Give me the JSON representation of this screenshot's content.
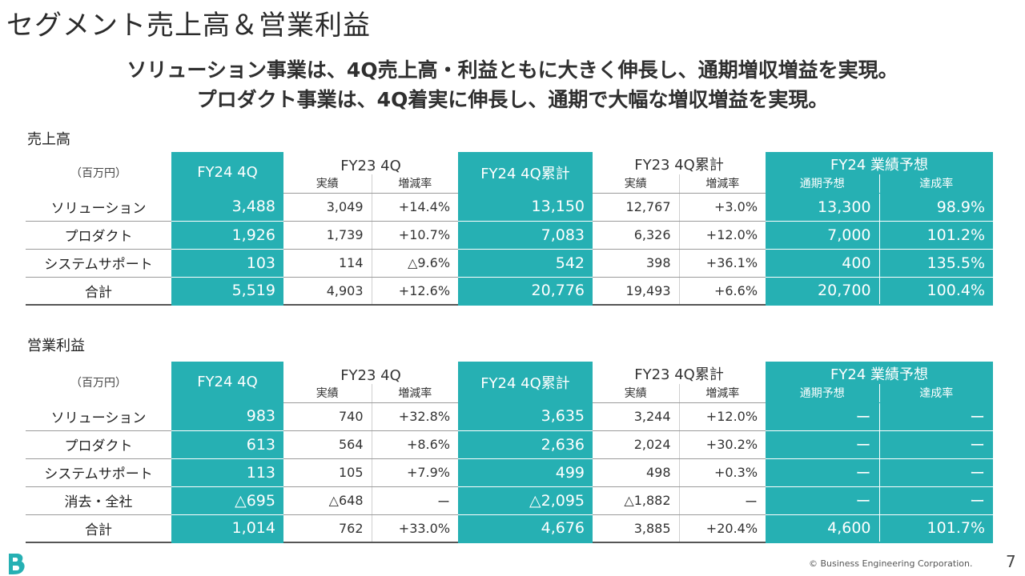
{
  "title": "セグメント売上高＆営業利益",
  "headline": {
    "line1": "ソリューション事業は、4Q売上高・利益ともに大きく伸長し、通期増収増益を実現。",
    "line2": "プロダクト事業は、4Q着実に伸長し、通期で大幅な増収増益を実現。"
  },
  "columns": {
    "unit": "（百万円）",
    "fy24_4q": "FY24 4Q",
    "fy23_4q": "FY23 4Q",
    "fy24_4q_cum": "FY24 4Q累計",
    "fy23_4q_cum": "FY23 4Q累計",
    "forecast": "FY24 業績予想",
    "actual": "実績",
    "change": "増減率",
    "full_year": "通期予想",
    "achievement": "達成率"
  },
  "sales": {
    "label": "売上高",
    "rows": [
      {
        "name": "ソリューション",
        "fy24_4q": "3,488",
        "fy23_4q": "3,049",
        "chg": "+14.4%",
        "fy24_cum": "13,150",
        "fy23_cum": "12,767",
        "chg_cum": "+3.0%",
        "forecast": "13,300",
        "achievement": "98.9%"
      },
      {
        "name": "プロダクト",
        "fy24_4q": "1,926",
        "fy23_4q": "1,739",
        "chg": "+10.7%",
        "fy24_cum": "7,083",
        "fy23_cum": "6,326",
        "chg_cum": "+12.0%",
        "forecast": "7,000",
        "achievement": "101.2%"
      },
      {
        "name": "システムサポート",
        "fy24_4q": "103",
        "fy23_4q": "114",
        "chg": "△9.6%",
        "fy24_cum": "542",
        "fy23_cum": "398",
        "chg_cum": "+36.1%",
        "forecast": "400",
        "achievement": "135.5%"
      },
      {
        "name": "合計",
        "fy24_4q": "5,519",
        "fy23_4q": "4,903",
        "chg": "+12.6%",
        "fy24_cum": "20,776",
        "fy23_cum": "19,493",
        "chg_cum": "+6.6%",
        "forecast": "20,700",
        "achievement": "100.4%"
      }
    ]
  },
  "profit": {
    "label": "営業利益",
    "rows": [
      {
        "name": "ソリューション",
        "fy24_4q": "983",
        "fy23_4q": "740",
        "chg": "+32.8%",
        "fy24_cum": "3,635",
        "fy23_cum": "3,244",
        "chg_cum": "+12.0%",
        "forecast": "ー",
        "achievement": "ー"
      },
      {
        "name": "プロダクト",
        "fy24_4q": "613",
        "fy23_4q": "564",
        "chg": "+8.6%",
        "fy24_cum": "2,636",
        "fy23_cum": "2,024",
        "chg_cum": "+30.2%",
        "forecast": "ー",
        "achievement": "ー"
      },
      {
        "name": "システムサポート",
        "fy24_4q": "113",
        "fy23_4q": "105",
        "chg": "+7.9%",
        "fy24_cum": "499",
        "fy23_cum": "498",
        "chg_cum": "+0.3%",
        "forecast": "ー",
        "achievement": "ー"
      },
      {
        "name": "消去・全社",
        "fy24_4q": "△695",
        "fy23_4q": "△648",
        "chg": "ー",
        "fy24_cum": "△2,095",
        "fy23_cum": "△1,882",
        "chg_cum": "ー",
        "forecast": "ー",
        "achievement": "ー"
      },
      {
        "name": "合計",
        "fy24_4q": "1,014",
        "fy23_4q": "762",
        "chg": "+33.0%",
        "fy24_cum": "4,676",
        "fy23_cum": "3,885",
        "chg_cum": "+20.4%",
        "forecast": "4,600",
        "achievement": "101.7%"
      }
    ]
  },
  "footer": {
    "copyright": "© Business Engineering Corporation.",
    "page": "7",
    "logo_icon": "b-logo-icon"
  },
  "colors": {
    "accent": "#26b0b3",
    "text": "#222222"
  }
}
